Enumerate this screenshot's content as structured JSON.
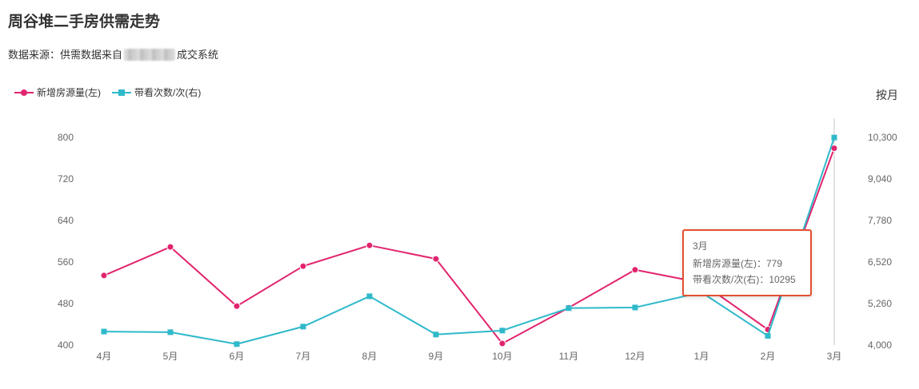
{
  "page": {
    "title": "周谷堆二手房供需走势",
    "source_prefix": "数据来源：供需数据来自",
    "source_suffix": "成交系统",
    "period_label": "按月"
  },
  "legend": [
    {
      "label": "新增房源量(左)",
      "color": "#e2246e",
      "symbol": "circle"
    },
    {
      "label": "带看次数/次(右)",
      "color": "#2fb9ca",
      "symbol": "square"
    }
  ],
  "chart_data": {
    "type": "line",
    "title": "周谷堆二手房供需走势",
    "categories": [
      "4月",
      "5月",
      "6月",
      "7月",
      "8月",
      "9月",
      "10月",
      "11月",
      "12月",
      "1月",
      "2月",
      "3月"
    ],
    "series": [
      {
        "name": "新增房源量(左)",
        "axis": "left",
        "color": "#e2246e",
        "symbol": "circle",
        "values": [
          534,
          589,
          475,
          552,
          592,
          566,
          403,
          472,
          545,
          520,
          430,
          779
        ]
      },
      {
        "name": "带看次数/次(右)",
        "axis": "right",
        "color": "#2fb9ca",
        "symbol": "square",
        "values": [
          4410,
          4390,
          4030,
          4560,
          5480,
          4320,
          4440,
          5120,
          5140,
          5600,
          4280,
          10295
        ]
      }
    ],
    "left_axis": {
      "min": 400,
      "max": 800,
      "ticks": [
        400,
        480,
        560,
        640,
        720,
        800
      ]
    },
    "right_axis": {
      "min": 4000,
      "max": 10300,
      "ticks": [
        "4,000",
        "5,260",
        "6,520",
        "7,780",
        "9,040",
        "10,300"
      ]
    },
    "grid": false,
    "legend_position": "top-left",
    "highlighted_category": "3月"
  },
  "tooltip": {
    "title": "3月",
    "lines": [
      "新增房源量(左)：779",
      "带看次数/次(右)：10295"
    ]
  }
}
